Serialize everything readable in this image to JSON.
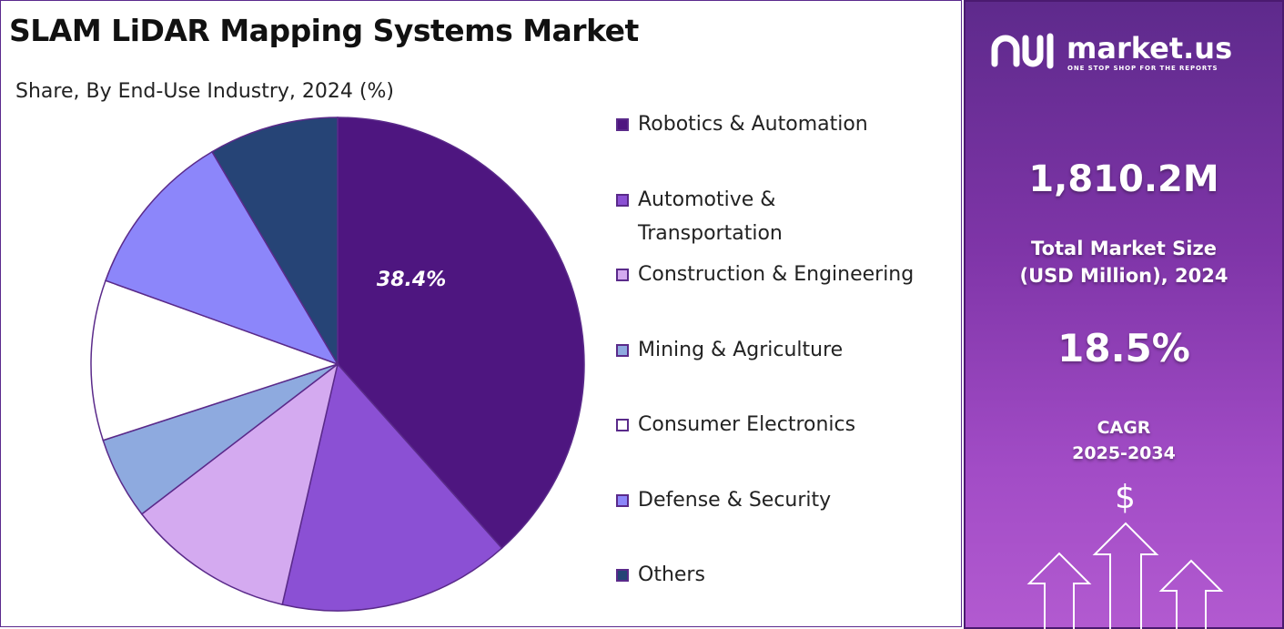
{
  "title": "SLAM LiDAR Mapping Systems Market",
  "subtitle": "Share, By End-Use Industry, 2024 (%)",
  "chart_data": {
    "type": "pie",
    "categories": [
      "Robotics & Automation",
      "Automotive & Transportation",
      "Construction & Engineering",
      "Mining & Agriculture",
      "Consumer Electronics",
      "Defense & Security",
      "Others"
    ],
    "values": [
      38.4,
      15.2,
      11.0,
      5.4,
      10.5,
      11.0,
      8.5
    ],
    "data_labels": [
      "38.4%",
      "",
      "",
      "",
      "",
      "",
      ""
    ],
    "colors": [
      "#4e1680",
      "#8b50d4",
      "#d4aaf0",
      "#8eaadf",
      "#ffffff",
      "#8c86fa",
      "#264476"
    ],
    "legend_position": "right"
  },
  "legend": [
    {
      "label": "Robotics & Automation",
      "color": "#4e1680"
    },
    {
      "label": "Automotive & Transportation",
      "color": "#8b50d4"
    },
    {
      "label": "Construction & Engineering",
      "color": "#d4aaf0"
    },
    {
      "label": "Mining & Agriculture",
      "color": "#8eaadf"
    },
    {
      "label": "Consumer Electronics",
      "color": "#ffffff"
    },
    {
      "label": "Defense & Security",
      "color": "#8c86fa"
    },
    {
      "label": "Others",
      "color": "#264476"
    }
  ],
  "sidebar": {
    "brand_name": "market.us",
    "brand_tagline": "ONE STOP SHOP FOR THE REPORTS",
    "market_size_value": "1,810.2M",
    "market_size_label": "Total Market Size (USD Million), 2024",
    "cagr_value": "18.5%",
    "cagr_label": "CAGR",
    "cagr_period": "2025-2034",
    "dollar_symbol": "$",
    "accent_colors": [
      "#5e2a8c",
      "#b25ad0"
    ]
  }
}
